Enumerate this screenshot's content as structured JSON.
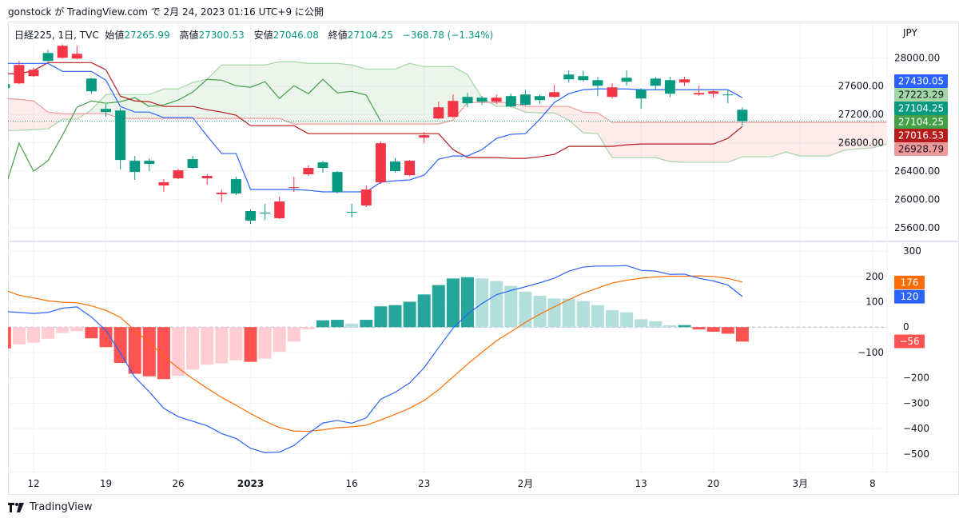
{
  "header": {
    "published": "gonstock が TradingView.com で 2月 24, 2023 01:16 UTC+9 に公開"
  },
  "legend": {
    "symbol": "日経225, 1日, TVC",
    "open_label": "始値",
    "open": "27265.99",
    "high_label": "高値",
    "high": "27300.53",
    "low_label": "安値",
    "low": "27046.08",
    "close_label": "終値",
    "close": "27104.25",
    "change": "−368.78 (−1.34%)"
  },
  "currency": "JPY",
  "footer": {
    "brand": "TradingView",
    "logo_icon": "tradingview-logo-icon"
  },
  "colors": {
    "up": "#f23645",
    "down": "#089981",
    "tenkan": "#2962ff",
    "kijun": "#b71c1c",
    "chikou": "#43a047",
    "span_a": "#a5d6a7",
    "span_b": "#ef9a9a",
    "cloud_up": "rgba(67,160,71,0.10)",
    "cloud_down": "rgba(244,67,54,0.10)",
    "macd": "#2962ff",
    "signal": "#ff6d00",
    "hist_pos_grow": "#26a69a",
    "hist_pos_fall": "#b2dfdb",
    "hist_neg_grow": "#ff5252",
    "hist_neg_fall": "#ffcdd2",
    "grid": "#f0f3fa",
    "border": "#e0e3eb"
  },
  "chart_data": [
    {
      "type": "candlestick",
      "pane": "price",
      "ylim": [
        25430,
        28500
      ],
      "grid": true,
      "dates": [
        "2022-12-08",
        "2022-12-09",
        "2022-12-12",
        "2022-12-13",
        "2022-12-14",
        "2022-12-15",
        "2022-12-16",
        "2022-12-19",
        "2022-12-20",
        "2022-12-21",
        "2022-12-22",
        "2022-12-23",
        "2022-12-26",
        "2022-12-27",
        "2022-12-28",
        "2022-12-29",
        "2022-12-30",
        "2023-01-04",
        "2023-01-05",
        "2023-01-06",
        "2023-01-10",
        "2023-01-11",
        "2023-01-12",
        "2023-01-13",
        "2023-01-16",
        "2023-01-17",
        "2023-01-18",
        "2023-01-19",
        "2023-01-20",
        "2023-01-23",
        "2023-01-24",
        "2023-01-25",
        "2023-01-26",
        "2023-01-27",
        "2023-01-30",
        "2023-01-31",
        "2023-02-01",
        "2023-02-02",
        "2023-02-03",
        "2023-02-06",
        "2023-02-07",
        "2023-02-08",
        "2023-02-09",
        "2023-02-10",
        "2023-02-13",
        "2023-02-14",
        "2023-02-15",
        "2023-02-16",
        "2023-02-17",
        "2023-02-20",
        "2023-02-21",
        "2023-02-22",
        "2023-02-24",
        "2023-02-27",
        "2023-02-28",
        "2023-03-01",
        "2023-03-02",
        "2023-03-03",
        "2023-03-06",
        "2023-03-07",
        "2023-03-08",
        "2023-03-09",
        "2023-03-10"
      ],
      "ohlc": [
        [
          27628,
          27640,
          27560,
          27572
        ],
        [
          27639,
          27955,
          27628,
          27899
        ],
        [
          27741,
          27865,
          27730,
          27831
        ],
        [
          28068,
          28113,
          27944,
          27955
        ],
        [
          28000,
          28192,
          27989,
          28169
        ],
        [
          27989,
          28169,
          27977,
          28056
        ],
        [
          27707,
          27718,
          27493,
          27527
        ],
        [
          27279,
          27346,
          27166,
          27234
        ],
        [
          27256,
          27290,
          26422,
          26557
        ],
        [
          26546,
          26614,
          26276,
          26388
        ],
        [
          26546,
          26580,
          26400,
          26501
        ],
        [
          26197,
          26287,
          26107,
          26242
        ],
        [
          26298,
          26433,
          26287,
          26411
        ],
        [
          26569,
          26614,
          26433,
          26445
        ],
        [
          26298,
          26355,
          26208,
          26332
        ],
        [
          26073,
          26140,
          25960,
          26095
        ],
        [
          26287,
          26321,
          26062,
          26084
        ],
        [
          25836,
          25859,
          25656,
          25701
        ],
        [
          25814,
          25938,
          25712,
          25802
        ],
        [
          25735,
          26039,
          25724,
          25971
        ],
        [
          26163,
          26321,
          26107,
          26174
        ],
        [
          26355,
          26479,
          26332,
          26445
        ],
        [
          26524,
          26546,
          26377,
          26445
        ],
        [
          26388,
          26400,
          26084,
          26107
        ],
        [
          25825,
          25938,
          25746,
          25814
        ],
        [
          25915,
          26197,
          25893,
          26140
        ],
        [
          26242,
          26817,
          26219,
          26794
        ],
        [
          26535,
          26591,
          26377,
          26400
        ],
        [
          26343,
          26557,
          26332,
          26546
        ],
        [
          26873,
          26952,
          26794,
          26907
        ],
        [
          27143,
          27380,
          27132,
          27301
        ],
        [
          27166,
          27482,
          27155,
          27391
        ],
        [
          27448,
          27504,
          27301,
          27358
        ],
        [
          27437,
          27459,
          27335,
          27380
        ],
        [
          27380,
          27482,
          27346,
          27437
        ],
        [
          27459,
          27493,
          27301,
          27313
        ],
        [
          27482,
          27549,
          27324,
          27335
        ],
        [
          27459,
          27482,
          27346,
          27403
        ],
        [
          27448,
          27617,
          27437,
          27515
        ],
        [
          27763,
          27820,
          27651,
          27696
        ],
        [
          27741,
          27820,
          27662,
          27684
        ],
        [
          27684,
          27730,
          27459,
          27606
        ],
        [
          27448,
          27639,
          27425,
          27583
        ],
        [
          27718,
          27820,
          27606,
          27662
        ],
        [
          27549,
          27572,
          27279,
          27425
        ],
        [
          27707,
          27730,
          27549,
          27606
        ],
        [
          27684,
          27730,
          27448,
          27493
        ],
        [
          27651,
          27730,
          27606,
          27696
        ],
        [
          27482,
          27606,
          27470,
          27504
        ],
        [
          27493,
          27549,
          27436,
          27527
        ],
        [
          27482,
          27549,
          27358,
          27473
        ],
        [
          27265.99,
          27300.53,
          27046.08,
          27104.25
        ]
      ],
      "ichimoku": {
        "tenkan": [
          27921,
          27921,
          27921,
          27921,
          27808,
          27808,
          27808,
          27684,
          27313,
          27234,
          27234,
          27155,
          27155,
          27155,
          26896,
          26648,
          26648,
          26141,
          26141,
          26141,
          26141,
          26129,
          26107,
          26107,
          26107,
          26107,
          26242,
          26264,
          26276,
          26343,
          26569,
          26614,
          26614,
          26704,
          26862,
          26919,
          26929,
          27132,
          27369,
          27493,
          27549,
          27560,
          27560,
          27560,
          27549,
          27549,
          27549,
          27549,
          27549,
          27549,
          27549,
          27437
        ],
        "kijun": [
          27775,
          27775,
          27820,
          27932,
          27932,
          27932,
          27932,
          27831,
          27459,
          27391,
          27380,
          27313,
          27313,
          27313,
          27267,
          27234,
          27189,
          27042,
          27042,
          27042,
          27042,
          26929,
          26929,
          26929,
          26929,
          26929,
          26929,
          26929,
          26929,
          26929,
          26929,
          26704,
          26591,
          26591,
          26591,
          26580,
          26580,
          26603,
          26636,
          26749,
          26749,
          26749,
          26749,
          26772,
          26783,
          26783,
          26783,
          26783,
          26783,
          26783,
          26862,
          27031
        ],
        "span_a": [
          26974,
          26974,
          26986,
          26997,
          27132,
          27132,
          27267,
          27482,
          27482,
          27482,
          27482,
          27560,
          27560,
          27651,
          27696,
          27899,
          27899,
          27899,
          27899,
          27944,
          27944,
          27921,
          27921,
          27921,
          27899,
          27842,
          27842,
          27842,
          27921,
          27876,
          27876,
          27876,
          27763,
          27437,
          27313,
          27313,
          27234,
          27222,
          27222,
          27121,
          26941,
          26929,
          26591,
          26591,
          26591,
          26591,
          26535,
          26524,
          26524,
          26524,
          26524,
          26603,
          26603,
          26603,
          26670,
          26614,
          26614,
          26614,
          26693,
          26715,
          26727,
          26783,
          26817
        ],
        "span_b": [
          27425,
          27414,
          27391,
          27234,
          27211,
          27211,
          27211,
          27211,
          27144,
          27144,
          27144,
          27144,
          27144,
          27144,
          27144,
          27144,
          27144,
          27144,
          27144,
          27144,
          27065,
          27065,
          27065,
          27065,
          27065,
          27065,
          27065,
          27065,
          27065,
          27065,
          27065,
          27121,
          27369,
          27369,
          27369,
          27369,
          27313,
          27313,
          27313,
          27313,
          27234,
          27222,
          27087,
          27087,
          27087,
          27087,
          27087,
          27087,
          27087,
          27087,
          27087,
          27087,
          27087,
          27087,
          27087,
          27087,
          27087,
          27087,
          27087,
          27087,
          27087,
          27087,
          27087
        ],
        "chikou_shift": 25
      },
      "y_ticks": [
        {
          "value": 28000,
          "label": "28000.00"
        },
        {
          "value": 27600,
          "label": "27600.00"
        },
        {
          "value": 27200,
          "label": "27200.00"
        },
        {
          "value": 26800,
          "label": "26800.00"
        },
        {
          "value": 26400,
          "label": "26400.00"
        },
        {
          "value": 26000,
          "label": "26000.00"
        },
        {
          "value": 25600,
          "label": "25600.00"
        }
      ],
      "price_tags": [
        {
          "label": "27430.05",
          "bg": "#2962ff",
          "fg": "#ffffff"
        },
        {
          "label": "27223.29",
          "bg": "#a5d6a7",
          "fg": "#131722"
        },
        {
          "label": "27104.25",
          "bg": "#089981",
          "fg": "#ffffff"
        },
        {
          "label": "27104.25",
          "bg": "#43a047",
          "fg": "#ffffff"
        },
        {
          "label": "27016.53",
          "bg": "#b71c1c",
          "fg": "#ffffff"
        },
        {
          "label": "26928.79",
          "bg": "#ef9a9a",
          "fg": "#131722"
        }
      ],
      "x_ticks": [
        {
          "label": "12",
          "date": "2022-12-12"
        },
        {
          "label": "19",
          "date": "2022-12-19"
        },
        {
          "label": "26",
          "date": "2022-12-26"
        },
        {
          "label": "2023",
          "date": "2023-01-04",
          "bold": true
        },
        {
          "label": "16",
          "date": "2023-01-16"
        },
        {
          "label": "23",
          "date": "2023-01-23"
        },
        {
          "label": "2月",
          "date": "2023-02-01"
        },
        {
          "label": "13",
          "date": "2023-02-13"
        },
        {
          "label": "20",
          "date": "2023-02-20"
        },
        {
          "label": "3月",
          "date": "2023-03-01"
        },
        {
          "label": "8",
          "date": "2023-03-08"
        }
      ]
    },
    {
      "type": "bar",
      "pane": "macd",
      "ylim": [
        -570,
        335
      ],
      "grid": true,
      "histogram": [
        -84,
        -68,
        -61,
        -46,
        -23,
        -16,
        -44,
        -79,
        -141,
        -184,
        -194,
        -205,
        -192,
        -168,
        -148,
        -143,
        -131,
        -137,
        -124,
        -97,
        -57,
        -9,
        27,
        29,
        14,
        29,
        82,
        87,
        100,
        129,
        166,
        192,
        197,
        192,
        182,
        163,
        140,
        124,
        113,
        113,
        103,
        87,
        67,
        58,
        31,
        23,
        7,
        8,
        -9,
        -18,
        -26,
        -57
      ],
      "macd": [
        62,
        58,
        54,
        58,
        75,
        80,
        40,
        -13,
        -102,
        -197,
        -255,
        -320,
        -353,
        -371,
        -389,
        -420,
        -439,
        -478,
        -495,
        -493,
        -467,
        -420,
        -378,
        -368,
        -379,
        -358,
        -284,
        -257,
        -220,
        -160,
        -81,
        -4,
        51,
        93,
        128,
        145,
        159,
        175,
        193,
        221,
        237,
        241,
        241,
        243,
        224,
        221,
        208,
        209,
        193,
        182,
        166,
        121
      ],
      "y_ticks": [
        {
          "value": 300,
          "label": "300"
        },
        {
          "value": 200,
          "label": "200"
        },
        {
          "value": 100,
          "label": "100"
        },
        {
          "value": 0,
          "label": "0"
        },
        {
          "value": -100,
          "label": "−100"
        },
        {
          "value": -200,
          "label": "−200"
        },
        {
          "value": -300,
          "label": "−300"
        },
        {
          "value": -400,
          "label": "−400"
        },
        {
          "value": -500,
          "label": "−500"
        }
      ],
      "value_tags": [
        {
          "label": "176",
          "value": 176,
          "bg": "#ff6d00",
          "fg": "#ffffff"
        },
        {
          "label": "120",
          "value": 120,
          "bg": "#2962ff",
          "fg": "#ffffff"
        },
        {
          "label": "−56",
          "value": -56,
          "bg": "#ff5252",
          "fg": "#ffffff"
        }
      ]
    }
  ]
}
